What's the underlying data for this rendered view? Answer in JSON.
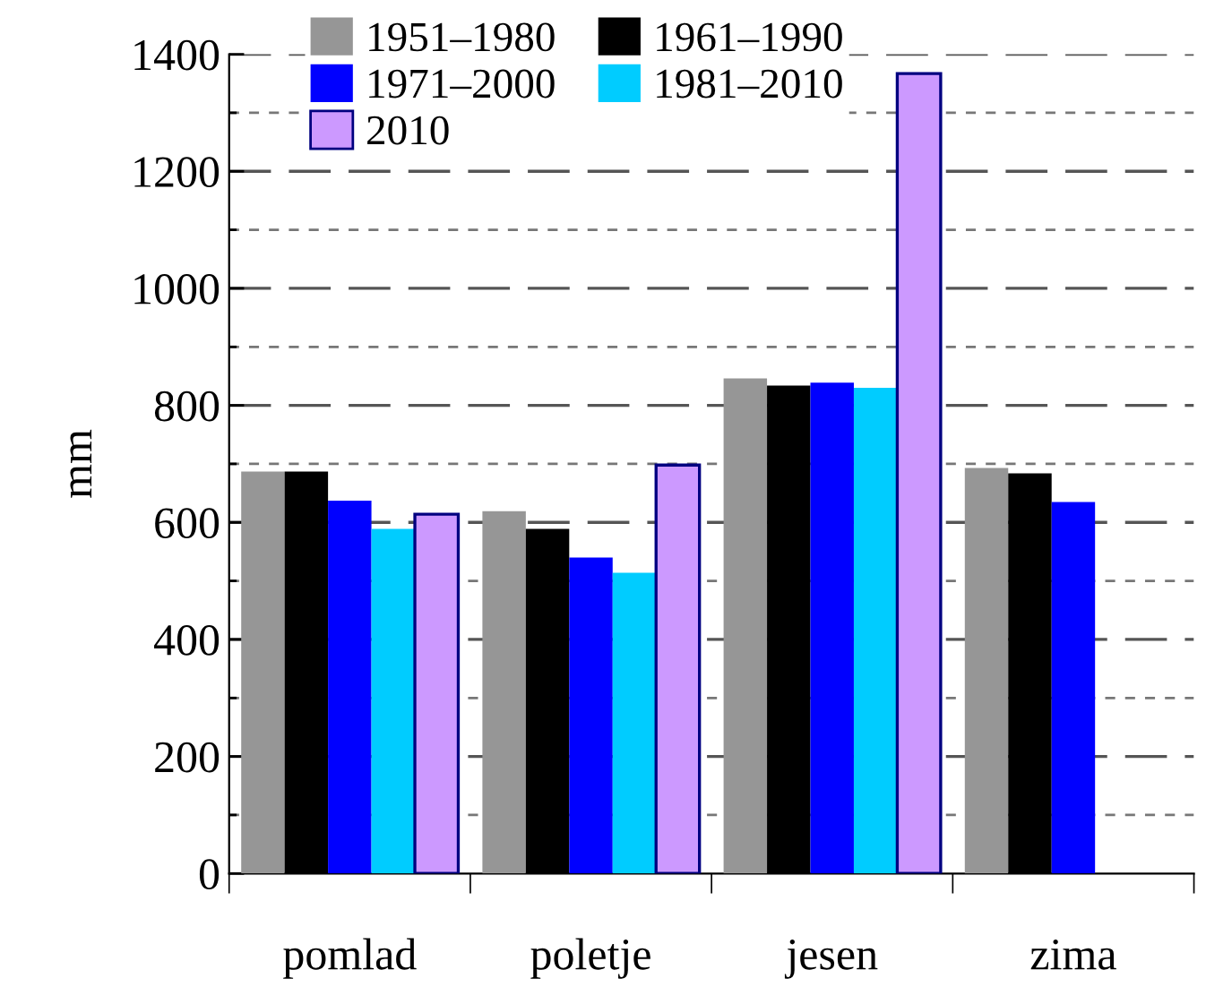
{
  "chart_data": {
    "type": "bar",
    "ylabel": "mm",
    "categories": [
      "pomlad",
      "poletje",
      "jesen",
      "zima"
    ],
    "series": [
      {
        "name": "1951–1980",
        "color": "#969696",
        "values": [
          687,
          619,
          846,
          693
        ]
      },
      {
        "name": "1961–1990",
        "color": "#000000",
        "values": [
          687,
          589,
          834,
          684
        ]
      },
      {
        "name": "1971–2000",
        "color": "#0000ff",
        "values": [
          637,
          540,
          839,
          635
        ]
      },
      {
        "name": "1981–2010",
        "color": "#00ccff",
        "values": [
          589,
          514,
          830,
          null
        ]
      },
      {
        "name": "2010",
        "color": "#cc99ff",
        "values": [
          614,
          698,
          1367,
          null
        ]
      }
    ],
    "ylim": [
      0,
      1400
    ],
    "yticks": [
      0,
      {
        "value": 100,
        "label": null
      },
      200,
      {
        "value": 300,
        "label": null
      },
      400,
      {
        "value": 500,
        "label": null
      },
      600,
      {
        "value": 700,
        "label": null
      },
      800,
      {
        "value": 900,
        "label": null
      },
      1000,
      {
        "value": 1100,
        "label": null
      },
      1200,
      {
        "value": 1300,
        "label": null
      },
      1400
    ],
    "grid": "y",
    "legend": "top left"
  }
}
